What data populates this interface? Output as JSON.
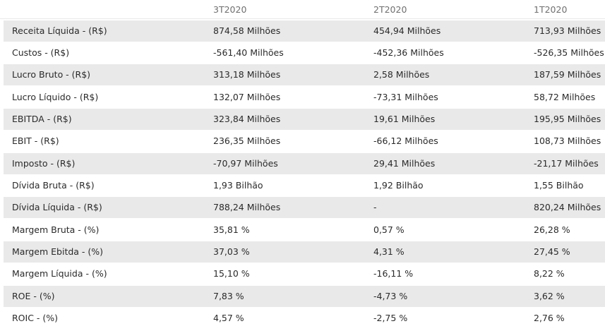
{
  "table": {
    "headers": [
      "",
      "3T2020",
      "2T2020",
      "1T2020"
    ],
    "rows": [
      {
        "label": "Receita Líquida - (R$)",
        "values": [
          "874,58 Milhões",
          "454,94 Milhões",
          "713,93 Milhões"
        ]
      },
      {
        "label": "Custos - (R$)",
        "values": [
          "-561,40 Milhões",
          "-452,36 Milhões",
          "-526,35 Milhões"
        ]
      },
      {
        "label": "Lucro Bruto - (R$)",
        "values": [
          "313,18 Milhões",
          "2,58 Milhões",
          "187,59 Milhões"
        ]
      },
      {
        "label": "Lucro Líquido - (R$)",
        "values": [
          "132,07 Milhões",
          "-73,31 Milhões",
          "58,72 Milhões"
        ]
      },
      {
        "label": "EBITDA - (R$)",
        "values": [
          "323,84 Milhões",
          "19,61 Milhões",
          "195,95 Milhões"
        ]
      },
      {
        "label": "EBIT - (R$)",
        "values": [
          "236,35 Milhões",
          "-66,12 Milhões",
          "108,73 Milhões"
        ]
      },
      {
        "label": "Imposto - (R$)",
        "values": [
          "-70,97 Milhões",
          "29,41 Milhões",
          "-21,17 Milhões"
        ]
      },
      {
        "label": "Dívida Bruta - (R$)",
        "values": [
          "1,93 Bilhão",
          "1,92 Bilhão",
          "1,55 Bilhão"
        ]
      },
      {
        "label": "Dívida Líquida - (R$)",
        "values": [
          "788,24 Milhões",
          "-",
          "820,24 Milhões"
        ]
      },
      {
        "label": "Margem Bruta - (%)",
        "values": [
          "35,81 %",
          "0,57 %",
          "26,28 %"
        ]
      },
      {
        "label": "Margem Ebitda - (%)",
        "values": [
          "37,03 %",
          "4,31 %",
          "27,45 %"
        ]
      },
      {
        "label": "Margem Líquida - (%)",
        "values": [
          "15,10 %",
          "-16,11 %",
          "8,22 %"
        ]
      },
      {
        "label": "ROE - (%)",
        "values": [
          "7,83 %",
          "-4,73 %",
          "3,62 %"
        ]
      },
      {
        "label": "ROIC - (%)",
        "values": [
          "4,57 %",
          "-2,75 %",
          "2,76 %"
        ]
      }
    ]
  },
  "colors": {
    "stripe": "#e9e9e9",
    "header_text": "#6f6f6f",
    "body_text": "#2a2a2a"
  }
}
